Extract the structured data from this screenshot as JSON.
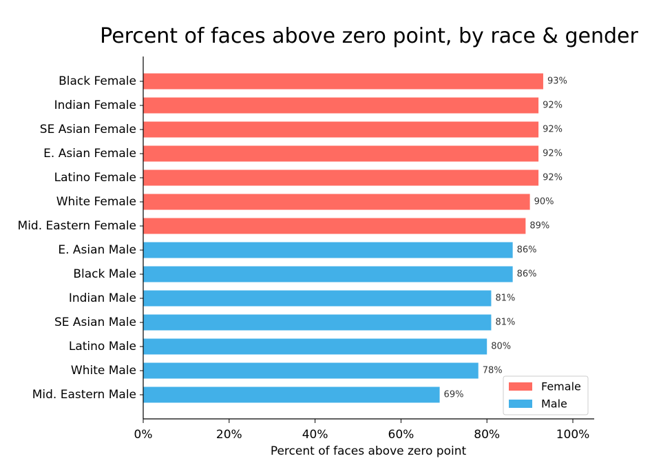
{
  "chart_data": {
    "type": "bar",
    "orientation": "horizontal",
    "title": "Percent of faces above zero point, by race & gender",
    "xlabel": "Percent of faces above zero point",
    "ylabel": "",
    "xlim": [
      0,
      100
    ],
    "x_ticks": [
      0,
      20,
      40,
      60,
      80,
      100
    ],
    "x_tick_labels": [
      "0%",
      "20%",
      "40%",
      "60%",
      "80%",
      "100%"
    ],
    "grid": false,
    "legend_position": "bottom-right",
    "series": [
      {
        "name": "Female",
        "color": "#FF6B61"
      },
      {
        "name": "Male",
        "color": "#42B0E8"
      }
    ],
    "categories": [
      "Black Female",
      "Indian Female",
      "SE Asian Female",
      "E. Asian Female",
      "Latino Female",
      "White Female",
      "Mid. Eastern Female",
      "E. Asian Male",
      "Black Male",
      "Indian Male",
      "SE Asian Male",
      "Latino Male",
      "White Male",
      "Mid. Eastern Male"
    ],
    "values": [
      93.1,
      92.0,
      92.0,
      92.0,
      92.0,
      90.0,
      89.0,
      86.0,
      86.0,
      81.0,
      81.0,
      80.0,
      78.0,
      69.0
    ],
    "value_labels": [
      "93%",
      "92%",
      "92%",
      "92%",
      "92%",
      "90%",
      "89%",
      "86%",
      "86%",
      "81%",
      "81%",
      "80%",
      "78%",
      "69%"
    ],
    "bar_series": [
      "Female",
      "Female",
      "Female",
      "Female",
      "Female",
      "Female",
      "Female",
      "Male",
      "Male",
      "Male",
      "Male",
      "Male",
      "Male",
      "Male"
    ]
  }
}
